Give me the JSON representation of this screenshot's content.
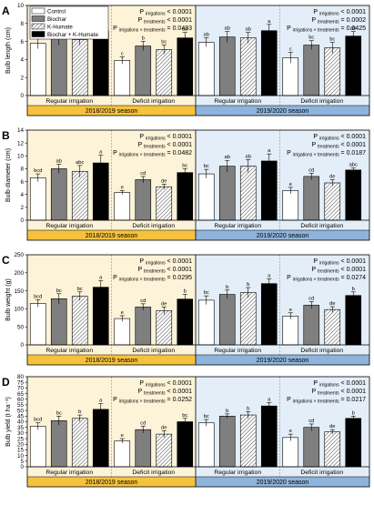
{
  "figure": {
    "legend": [
      {
        "name": "Control",
        "pattern": "white"
      },
      {
        "name": "Biochar",
        "pattern": "gray"
      },
      {
        "name": "K-Humate",
        "pattern": "hatch"
      },
      {
        "name": "Biochar + K-Humate",
        "pattern": "black"
      }
    ],
    "colors": {
      "season1_bg": "#fdf3d8",
      "season2_bg": "#e3eef8",
      "season1_band": "#f6c23e",
      "season2_band": "#8fb4dc",
      "gray_bar": "#7f7f7f",
      "black_bar": "#000000"
    },
    "irrigation_labels": [
      "Regular irrigation",
      "Deficit irrigation"
    ],
    "season_labels": [
      "2018/2019 season",
      "2019/2020 season"
    ]
  },
  "chart_data": [
    {
      "type": "bar",
      "panel": "A",
      "ylabel": "Bulb length (cm)",
      "ylim": [
        0,
        10
      ],
      "yticks": [
        0,
        2,
        4,
        6,
        8,
        10
      ],
      "categories": [
        "Control",
        "Biochar",
        "K-Humate",
        "Biochar + K-Humate"
      ],
      "groups": [
        {
          "season": "2018/2019 season",
          "irrigation": "Regular irrigation",
          "values": [
            5.8,
            6.4,
            6.2,
            7.2
          ],
          "errors": [
            0.6,
            0.8,
            0.6,
            0.7
          ],
          "letters": [
            "ab",
            "ab",
            "ab",
            "a"
          ]
        },
        {
          "season": "2018/2019 season",
          "irrigation": "Deficit irrigation",
          "values": [
            3.9,
            5.5,
            5.1,
            6.4
          ],
          "errors": [
            0.4,
            0.5,
            0.5,
            0.6
          ],
          "letters": [
            "c",
            "b",
            "bc",
            "ab"
          ]
        },
        {
          "season": "2019/2020 season",
          "irrigation": "Regular irrigation",
          "values": [
            5.9,
            6.5,
            6.4,
            7.2
          ],
          "errors": [
            0.5,
            0.6,
            0.6,
            0.7
          ],
          "letters": [
            "ab",
            "ab",
            "ab",
            "a"
          ]
        },
        {
          "season": "2019/2020 season",
          "irrigation": "Deficit irrigation",
          "values": [
            4.2,
            5.6,
            5.3,
            6.6
          ],
          "errors": [
            0.6,
            0.5,
            0.6,
            0.5
          ],
          "letters": [
            "c",
            "bc",
            "bc",
            "ab"
          ]
        }
      ],
      "stats": [
        [
          {
            "term": "irrigations",
            "value": "< 0.0001"
          },
          {
            "term": "treatments",
            "value": "< 0.0001"
          },
          {
            "term": "irrigations × treatments",
            "value": "= 0.0433"
          }
        ],
        [
          {
            "term": "irrigations",
            "value": "< 0.0001"
          },
          {
            "term": "treatments",
            "value": "= 0.0002"
          },
          {
            "term": "irrigations × treatments",
            "value": "= 0.0425"
          }
        ]
      ]
    },
    {
      "type": "bar",
      "panel": "B",
      "ylabel": "Bulb diameter (cm)",
      "ylim": [
        0,
        14
      ],
      "yticks": [
        0,
        2,
        4,
        6,
        8,
        10,
        12,
        14
      ],
      "categories": [
        "Control",
        "Biochar",
        "K-Humate",
        "Biochar + K-Humate"
      ],
      "groups": [
        {
          "season": "2018/2019 season",
          "irrigation": "Regular irrigation",
          "values": [
            6.6,
            8.0,
            7.6,
            8.9
          ],
          "errors": [
            0.6,
            0.7,
            0.9,
            1.2
          ],
          "letters": [
            "bcd",
            "ab",
            "abc",
            "a"
          ]
        },
        {
          "season": "2018/2019 season",
          "irrigation": "Deficit irrigation",
          "values": [
            4.3,
            6.3,
            5.2,
            7.4
          ],
          "errors": [
            0.3,
            0.5,
            0.4,
            0.6
          ],
          "letters": [
            "e",
            "cd",
            "de",
            "bc"
          ]
        },
        {
          "season": "2019/2020 season",
          "irrigation": "Regular irrigation",
          "values": [
            7.2,
            8.4,
            8.4,
            9.2
          ],
          "errors": [
            0.7,
            0.9,
            1.0,
            1.1
          ],
          "letters": [
            "bc",
            "ab",
            "ab",
            "a"
          ]
        },
        {
          "season": "2019/2020 season",
          "irrigation": "Deficit irrigation",
          "values": [
            4.6,
            6.8,
            5.8,
            7.8
          ],
          "errors": [
            0.5,
            0.5,
            0.5,
            0.3
          ],
          "letters": [
            "e",
            "cd",
            "de",
            "abc"
          ]
        }
      ],
      "stats": [
        [
          {
            "term": "irrigations",
            "value": "< 0.0001"
          },
          {
            "term": "treatments",
            "value": "< 0.0001"
          },
          {
            "term": "irrigations × treatments",
            "value": "= 0.0482"
          }
        ],
        [
          {
            "term": "irrigations",
            "value": "< 0.0001"
          },
          {
            "term": "treatments",
            "value": "< 0.0001"
          },
          {
            "term": "irrigations × treatments",
            "value": "= 0.0187"
          }
        ]
      ]
    },
    {
      "type": "bar",
      "panel": "C",
      "ylabel": "Bulb weight (g)",
      "ylim": [
        0,
        250
      ],
      "yticks": [
        0,
        50,
        100,
        150,
        200,
        250
      ],
      "categories": [
        "Control",
        "Biochar",
        "K-Humate",
        "Biochar + K-Humate"
      ],
      "groups": [
        {
          "season": "2018/2019 season",
          "irrigation": "Regular irrigation",
          "values": [
            115,
            128,
            135,
            160
          ],
          "errors": [
            10,
            14,
            12,
            18
          ],
          "letters": [
            "bcd",
            "bc",
            "bc",
            "a"
          ]
        },
        {
          "season": "2018/2019 season",
          "irrigation": "Deficit irrigation",
          "values": [
            73,
            105,
            95,
            127
          ],
          "errors": [
            8,
            9,
            10,
            13
          ],
          "letters": [
            "e",
            "cd",
            "de",
            "b"
          ]
        },
        {
          "season": "2019/2020 season",
          "irrigation": "Regular irrigation",
          "values": [
            124,
            140,
            145,
            170
          ],
          "errors": [
            12,
            12,
            14,
            13
          ],
          "letters": [
            "bc",
            "b",
            "b",
            "a"
          ]
        },
        {
          "season": "2019/2020 season",
          "irrigation": "Deficit irrigation",
          "values": [
            80,
            110,
            98,
            137
          ],
          "errors": [
            9,
            10,
            8,
            10
          ],
          "letters": [
            "e",
            "cd",
            "de",
            "b"
          ]
        }
      ],
      "stats": [
        [
          {
            "term": "irrigations",
            "value": "< 0.0001"
          },
          {
            "term": "treatments",
            "value": "< 0.0001"
          },
          {
            "term": "irrigations × treatments",
            "value": "= 0.0295"
          }
        ],
        [
          {
            "term": "irrigations",
            "value": "< 0.0001"
          },
          {
            "term": "treatments",
            "value": "< 0.0001"
          },
          {
            "term": "irrigations × treatments",
            "value": "= 0.0274"
          }
        ]
      ]
    },
    {
      "type": "bar",
      "panel": "D",
      "ylabel": "Bulb yield (t ha⁻¹)",
      "ylim": [
        0,
        80
      ],
      "yticks": [
        0,
        5,
        10,
        15,
        20,
        25,
        30,
        35,
        40,
        45,
        50,
        55,
        60,
        65,
        70,
        75,
        80
      ],
      "categories": [
        "Control",
        "Biochar",
        "K-Humate",
        "Biochar + K-Humate"
      ],
      "groups": [
        {
          "season": "2018/2019 season",
          "irrigation": "Regular irrigation",
          "values": [
            36,
            41,
            43,
            51
          ],
          "errors": [
            3,
            4,
            3,
            5
          ],
          "letters": [
            "bcd",
            "bc",
            "b",
            "a"
          ]
        },
        {
          "season": "2018/2019 season",
          "irrigation": "Deficit irrigation",
          "values": [
            23,
            33,
            29,
            40
          ],
          "errors": [
            2,
            3,
            3,
            3
          ],
          "letters": [
            "e",
            "cd",
            "de",
            "bc"
          ]
        },
        {
          "season": "2019/2020 season",
          "irrigation": "Regular irrigation",
          "values": [
            39,
            45,
            46,
            54
          ],
          "errors": [
            3,
            2,
            3,
            3
          ],
          "letters": [
            "bc",
            "b",
            "b",
            "a"
          ]
        },
        {
          "season": "2019/2020 season",
          "irrigation": "Deficit irrigation",
          "values": [
            26,
            35,
            31,
            43
          ],
          "errors": [
            3,
            3,
            2,
            2
          ],
          "letters": [
            "e",
            "cd",
            "de",
            "b"
          ]
        }
      ],
      "stats": [
        [
          {
            "term": "irrigations",
            "value": "< 0.0001"
          },
          {
            "term": "treatments",
            "value": "< 0.0001"
          },
          {
            "term": "irrigations × treatments",
            "value": "= 0.0252"
          }
        ],
        [
          {
            "term": "irrigations",
            "value": "< 0.0001"
          },
          {
            "term": "treatments",
            "value": "< 0.0001"
          },
          {
            "term": "irrigations × treatments",
            "value": "= 0.0217"
          }
        ]
      ]
    }
  ]
}
